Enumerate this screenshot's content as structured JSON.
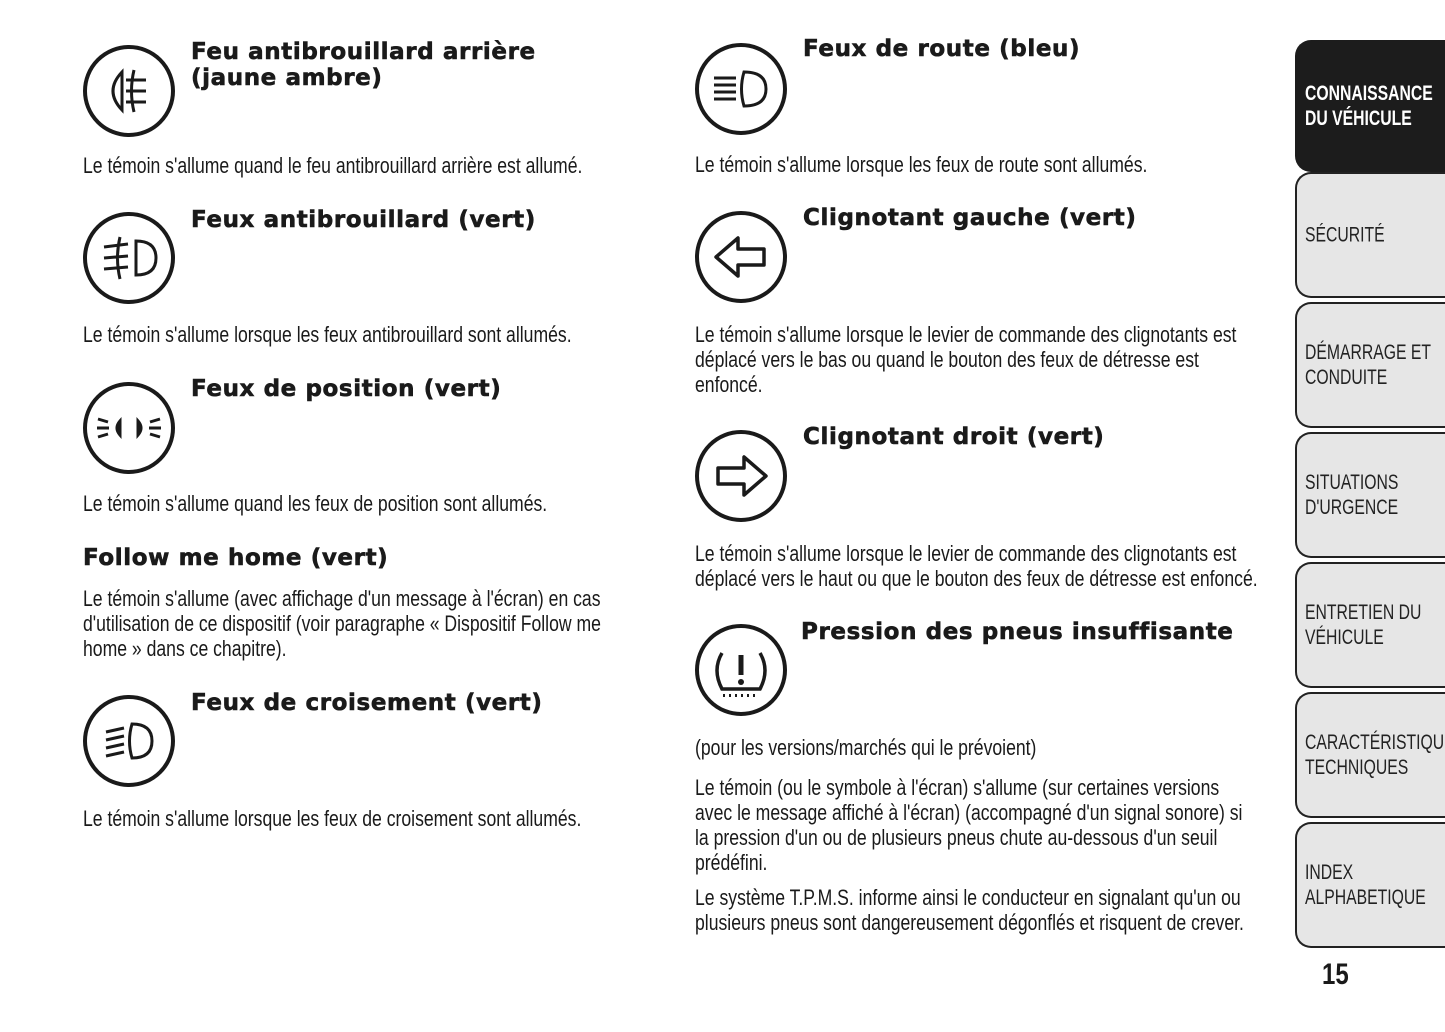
{
  "left": [
    {
      "title": [
        "Feu antibrouillard arrière",
        "(jaune ambre)"
      ],
      "icon": "rear-fog-light-icon",
      "text": [
        "Le témoin s'allume quand le feu antibrouillard arrière est allumé."
      ]
    },
    {
      "title": [
        "Feux antibrouillard (vert)"
      ],
      "icon": "front-fog-light-icon",
      "text": [
        "Le témoin s'allume lorsque les feux antibrouillard sont allumés."
      ]
    },
    {
      "title": [
        "Feux de position (vert)"
      ],
      "icon": "position-lights-icon",
      "text": [
        "Le témoin s'allume quand les feux de position sont allumés."
      ]
    },
    {
      "title": [
        "Follow me home (vert)"
      ],
      "text": [
        "Le témoin s'allume (avec affichage d'un message à l'écran) en cas",
        "d'utilisation de ce dispositif (voir paragraphe « Dispositif Follow me",
        "home » dans ce chapitre)."
      ]
    },
    {
      "title": [
        "Feux de croisement (vert)"
      ],
      "icon": "low-beam-icon",
      "text": [
        "Le témoin s'allume lorsque les feux de croisement sont allumés."
      ]
    }
  ],
  "right": [
    {
      "title": [
        "Feux de route (bleu)"
      ],
      "icon": "high-beam-icon",
      "text": [
        "Le témoin s'allume lorsque les feux de route sont allumés."
      ]
    },
    {
      "title": [
        "Clignotant gauche (vert)"
      ],
      "icon": "left-turn-arrow-icon",
      "text": [
        "Le témoin s'allume lorsque le levier de commande des clignotants est",
        "déplacé vers le bas ou quand le bouton des feux de détresse est",
        "enfoncé."
      ]
    },
    {
      "title": [
        "Clignotant droit (vert)"
      ],
      "icon": "right-turn-arrow-icon",
      "text": [
        "Le témoin s'allume lorsque le levier de commande des clignotants est",
        "déplacé vers le haut ou que le bouton des feux de détresse est enfoncé."
      ]
    },
    {
      "title": [
        "Pression des pneus insuffisante"
      ],
      "icon": "tire-pressure-warning-icon",
      "text": [
        "(pour les versions/marchés qui le prévoient)"
      ],
      "text2": [
        "Le témoin (ou le symbole à l'écran) s'allume (sur certaines versions",
        "avec le message affiché à l'écran) (accompagné d'un signal sonore) si",
        "la pression d'un ou de plusieurs pneus chute au-dessous d'un seuil",
        "prédéfini."
      ],
      "text3": [
        "Le système T.P.M.S. informe ainsi le conducteur en signalant qu'un ou",
        "plusieurs pneus sont dangereusement dégonflés et risquent de crever."
      ]
    }
  ],
  "tabs": [
    {
      "label": [
        "CONNAISSANCE",
        "DU VÉHICULE"
      ],
      "active": true
    },
    {
      "label": [
        "SÉCURITÉ"
      ]
    },
    {
      "label": [
        "DÉMARRAGE ET",
        "CONDUITE"
      ]
    },
    {
      "label": [
        "SITUATIONS",
        "D'URGENCE"
      ]
    },
    {
      "label": [
        "ENTRETIEN DU",
        "VÉHICULE"
      ]
    },
    {
      "label": [
        "CARACTÉRISTIQUES",
        "TECHNIQUES"
      ]
    },
    {
      "label": [
        "INDEX",
        "ALPHABETIQUE"
      ]
    }
  ],
  "page_number": "15"
}
